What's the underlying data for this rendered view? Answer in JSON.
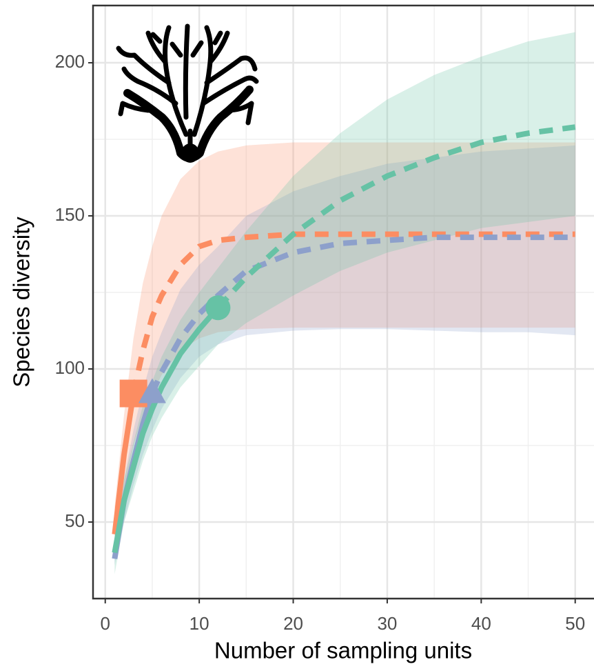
{
  "chart_data": {
    "type": "line",
    "x_label": "Number of sampling units",
    "y_label": "Species diversity",
    "x": [
      1,
      2,
      3,
      4,
      5,
      6,
      8,
      10,
      12,
      15,
      20,
      25,
      30,
      35,
      40,
      45,
      50
    ],
    "series": [
      {
        "color": "#fc8d62",
        "marker": "square",
        "values": [
          46,
          72,
          92,
          106,
          117,
          124,
          134,
          140,
          142,
          143,
          144,
          144,
          144,
          144,
          144,
          144,
          144
        ],
        "lower": [
          38,
          60,
          75,
          85,
          92,
          98,
          106,
          110,
          112,
          113,
          113.5,
          113.5,
          113.5,
          113.5,
          113.5,
          113.5,
          113.5
        ],
        "upper": [
          55,
          85,
          110,
          128,
          140,
          150,
          162,
          168,
          171,
          173,
          174,
          174,
          174,
          174,
          174,
          174,
          174
        ],
        "observed": {
          "x": 3,
          "y": 92
        }
      },
      {
        "color": "#8da0cb",
        "marker": "triangle",
        "values": [
          38,
          57,
          70,
          82,
          92,
          99,
          110,
          118,
          124,
          132,
          138,
          141,
          142,
          143,
          143,
          143,
          143
        ],
        "lower": [
          36,
          50,
          62,
          72,
          80,
          87,
          97,
          104,
          108,
          111,
          112.5,
          113,
          113,
          112.5,
          112,
          112,
          111
        ],
        "upper": [
          42,
          64,
          80,
          93,
          104,
          112,
          126,
          134,
          140,
          150,
          158,
          163,
          167,
          169,
          171,
          172,
          173
        ],
        "observed": {
          "x": 5,
          "y": 92
        }
      },
      {
        "color": "#66c2a5",
        "marker": "circle",
        "values": [
          40,
          57,
          68,
          79,
          87,
          94,
          105,
          113,
          120,
          130,
          144,
          155,
          163,
          169,
          174,
          177,
          179
        ],
        "lower": [
          33,
          50,
          60,
          70,
          78,
          84,
          94,
          101,
          108,
          115,
          124,
          132,
          138,
          142,
          146,
          148,
          150
        ],
        "upper": [
          46,
          64,
          76,
          88,
          96,
          104,
          116,
          125,
          133,
          145,
          163,
          177,
          188,
          196,
          202,
          207,
          210
        ],
        "observed": {
          "x": 12,
          "y": 120
        }
      }
    ],
    "xlim": [
      -1.3,
      52
    ],
    "ylim": [
      25,
      218.7
    ],
    "xticks": [
      0,
      10,
      20,
      30,
      40,
      50
    ],
    "yticks": [
      50,
      100,
      150,
      200
    ],
    "xminor": [
      5,
      15,
      25,
      35,
      45
    ],
    "yminor": [
      75,
      125,
      175
    ],
    "grid": true
  }
}
